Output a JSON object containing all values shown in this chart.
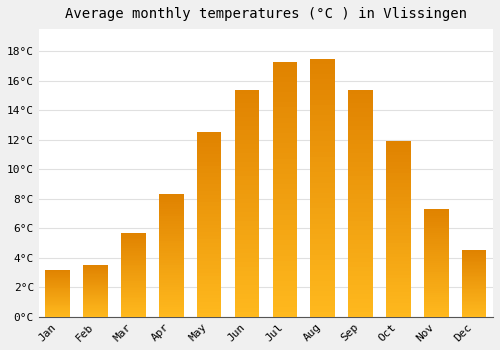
{
  "months": [
    "Jan",
    "Feb",
    "Mar",
    "Apr",
    "May",
    "Jun",
    "Jul",
    "Aug",
    "Sep",
    "Oct",
    "Nov",
    "Dec"
  ],
  "temperatures": [
    3.2,
    3.5,
    5.7,
    8.3,
    12.5,
    15.4,
    17.3,
    17.5,
    15.4,
    11.9,
    7.3,
    4.5
  ],
  "bar_color_main": "#FFA500",
  "bar_color_top": "#F08000",
  "bar_color_bottom": "#FFD966",
  "title": "Average monthly temperatures (°C ) in Vlissingen",
  "ylabel_ticks": [
    "0°C",
    "2°C",
    "4°C",
    "6°C",
    "8°C",
    "10°C",
    "12°C",
    "14°C",
    "16°C",
    "18°C"
  ],
  "ytick_values": [
    0,
    2,
    4,
    6,
    8,
    10,
    12,
    14,
    16,
    18
  ],
  "ylim": [
    0,
    19.5
  ],
  "plot_bg_color": "#ffffff",
  "outer_bg_color": "#f0f0f0",
  "grid_color": "#e0e0e0",
  "title_fontsize": 10,
  "tick_fontsize": 8,
  "bar_width": 0.65,
  "font_family": "monospace"
}
